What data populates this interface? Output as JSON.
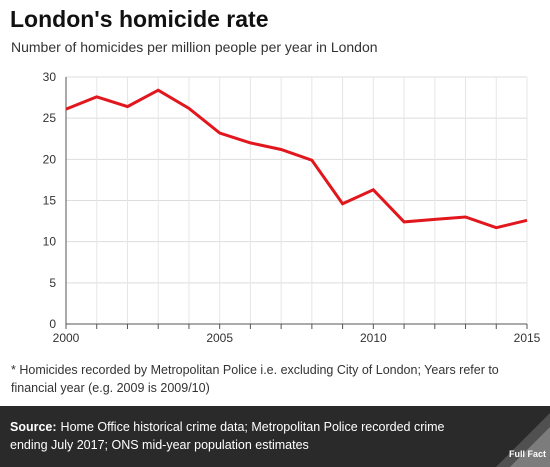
{
  "header": {
    "title": "London's homicide rate",
    "subtitle": "Number of homicides per million people per year in London"
  },
  "chart_data": {
    "type": "line",
    "title": "London's homicide rate",
    "subtitle": "Number of homicides per million people per year in London",
    "xlabel": "",
    "ylabel": "",
    "x": [
      2000,
      2001,
      2002,
      2003,
      2004,
      2005,
      2006,
      2007,
      2008,
      2009,
      2010,
      2011,
      2012,
      2013,
      2014,
      2015
    ],
    "series": [
      {
        "values": [
          26.1,
          27.6,
          26.4,
          28.4,
          26.2,
          23.2,
          22.0,
          21.2,
          19.9,
          14.6,
          16.3,
          12.4,
          12.7,
          13.0,
          11.7,
          12.6
        ]
      }
    ],
    "xlim": [
      2000,
      2015
    ],
    "ylim": [
      0,
      30
    ],
    "x_ticks": [
      "2000",
      "2005",
      "2010",
      "2015"
    ],
    "y_ticks": [
      "0",
      "5",
      "10",
      "15",
      "20",
      "25",
      "30"
    ],
    "grid": true,
    "line_color": "#e2161d"
  },
  "footnote": "* Homicides recorded by Metropolitan Police i.e. excluding City of London; Years refer to financial year (e.g. 2009 is 2009/10)",
  "source": {
    "label": "Source:",
    "text": "Home Office historical crime data; Metropolitan Police recorded crime ending July 2017; ONS mid-year population estimates"
  },
  "brand": {
    "name": "Full Fact",
    "icon": "full-fact-logo-icon"
  }
}
